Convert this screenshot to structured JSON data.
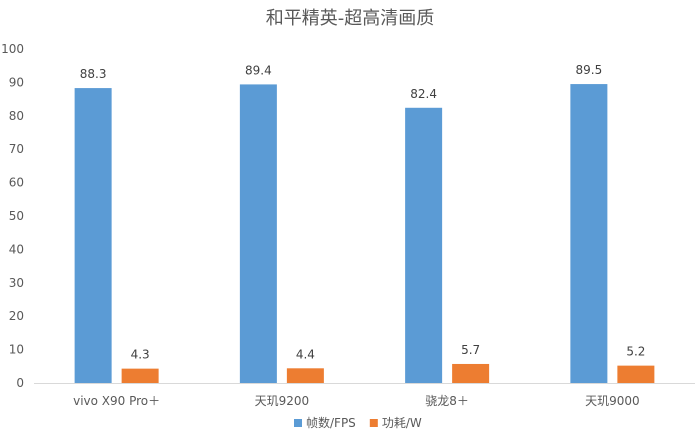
{
  "chart_data": {
    "type": "bar",
    "title": "和平精英-超高清画质",
    "xlabel": "",
    "ylabel": "",
    "categories": [
      "vivo X90 Pro＋",
      "天玑9200",
      "骁龙8＋",
      "天玑9000"
    ],
    "series": [
      {
        "name": "帧数/FPS",
        "color": "#5B9BD5",
        "values": [
          88.3,
          89.4,
          82.4,
          89.5
        ]
      },
      {
        "name": "功耗/W",
        "color": "#ED7D31",
        "values": [
          4.3,
          4.4,
          5.7,
          5.2
        ]
      }
    ],
    "ylim": [
      0,
      100
    ],
    "yticks": [
      0,
      10,
      20,
      30,
      40,
      50,
      60,
      70,
      80,
      90,
      100
    ],
    "grid": false,
    "legend_position": "bottom",
    "data_labels": true,
    "colors": {
      "axis": "#D9D9D9",
      "text": "#595959"
    }
  }
}
